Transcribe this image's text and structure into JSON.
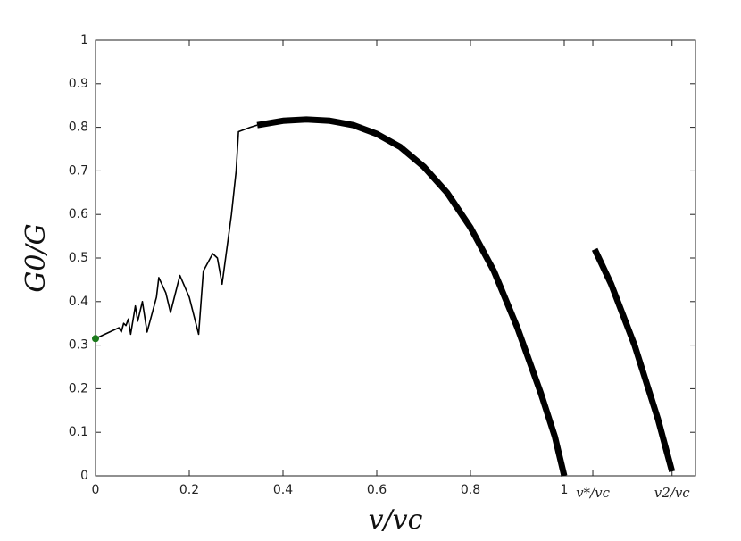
{
  "chart_data": {
    "type": "line",
    "xlabel": "v/vc",
    "ylabel": "G0/G",
    "xlim": [
      0,
      1.28
    ],
    "ylim": [
      0,
      1
    ],
    "xticks": [
      0,
      0.2,
      0.4,
      0.6,
      0.8,
      1,
      {
        "value": 1.061,
        "label": "v*/vc"
      },
      {
        "value": 1.23,
        "label": "v2/vc"
      }
    ],
    "yticks": [
      0,
      0.1,
      0.2,
      0.3,
      0.4,
      0.5,
      0.6,
      0.7,
      0.8,
      0.9,
      1
    ],
    "series": [
      {
        "color": "#000000",
        "line_width": 1.6,
        "x": [
          0,
          0.02,
          0.04,
          0.05,
          0.055,
          0.06,
          0.065,
          0.07,
          0.075,
          0.085,
          0.09,
          0.1,
          0.11,
          0.13,
          0.135,
          0.15,
          0.16,
          0.18,
          0.2,
          0.22,
          0.23,
          0.25,
          0.26,
          0.27,
          0.29,
          0.3,
          0.305,
          0.33,
          0.345
        ],
        "values": [
          0.315,
          0.325,
          0.335,
          0.34,
          0.33,
          0.35,
          0.345,
          0.36,
          0.325,
          0.39,
          0.355,
          0.4,
          0.33,
          0.41,
          0.455,
          0.42,
          0.375,
          0.46,
          0.41,
          0.325,
          0.47,
          0.51,
          0.5,
          0.44,
          0.6,
          0.7,
          0.79,
          0.8,
          0.805
        ]
      },
      {
        "color": "#000000",
        "line_width": 7,
        "x": [
          0.345,
          0.4,
          0.45,
          0.5,
          0.55,
          0.6,
          0.65,
          0.7,
          0.75,
          0.8,
          0.85,
          0.9,
          0.95,
          0.98,
          1.0
        ],
        "values": [
          0.805,
          0.815,
          0.818,
          0.815,
          0.805,
          0.785,
          0.755,
          0.71,
          0.65,
          0.57,
          0.47,
          0.34,
          0.19,
          0.09,
          0
        ]
      },
      {
        "color": "#000000",
        "line_width": 7,
        "x": [
          1.065,
          1.1,
          1.15,
          1.2,
          1.23
        ],
        "values": [
          0.52,
          0.44,
          0.3,
          0.13,
          0.01
        ]
      }
    ],
    "points": {
      "x": [
        0
      ],
      "values": [
        0.315
      ],
      "color": "#1a7a1a"
    }
  }
}
